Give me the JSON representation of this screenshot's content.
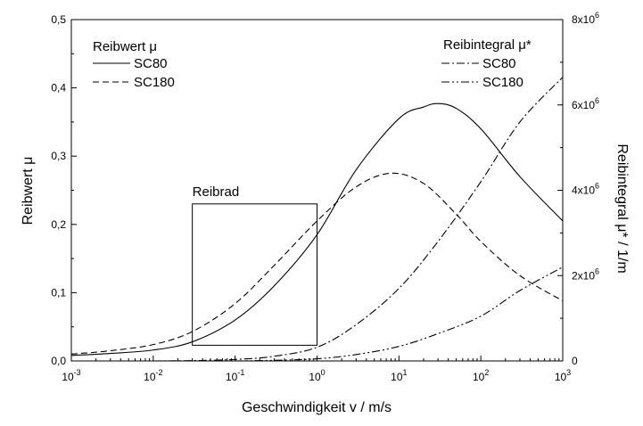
{
  "chart_data": {
    "type": "line",
    "xlabel": "Geschwindigkeit v / m/s",
    "ylabel_left": "Reibwert μ",
    "ylabel_right": "Reibintegral μ* / 1/m",
    "x_scale": "log",
    "xlim": [
      0.001,
      1000
    ],
    "ylim_left": [
      0,
      0.5
    ],
    "ylim_right": [
      0,
      8000000
    ],
    "x_ticks": [
      {
        "value": 0.001,
        "base": "10",
        "exp": "-3"
      },
      {
        "value": 0.01,
        "base": "10",
        "exp": "-2"
      },
      {
        "value": 0.1,
        "base": "10",
        "exp": "-1"
      },
      {
        "value": 1,
        "base": "10",
        "exp": "0"
      },
      {
        "value": 10,
        "base": "10",
        "exp": "1"
      },
      {
        "value": 100,
        "base": "10",
        "exp": "2"
      },
      {
        "value": 1000,
        "base": "10",
        "exp": "3"
      }
    ],
    "y_left_ticks": [
      {
        "value": 0,
        "label": "0,0"
      },
      {
        "value": 0.1,
        "label": "0,1"
      },
      {
        "value": 0.2,
        "label": "0,2"
      },
      {
        "value": 0.3,
        "label": "0,3"
      },
      {
        "value": 0.4,
        "label": "0,4"
      },
      {
        "value": 0.5,
        "label": "0,5"
      }
    ],
    "y_right_ticks": [
      {
        "value": 0,
        "label": "0",
        "base": "",
        "exp": ""
      },
      {
        "value": 2000000,
        "label": "2x10",
        "base": "2x10",
        "exp": "6"
      },
      {
        "value": 4000000,
        "label": "4x10",
        "base": "4x10",
        "exp": "6"
      },
      {
        "value": 6000000,
        "label": "6x10",
        "base": "6x10",
        "exp": "6"
      },
      {
        "value": 8000000,
        "label": "8x10",
        "base": "8x10",
        "exp": "6"
      }
    ],
    "legend_left": {
      "title": "Reibwert μ",
      "entries": [
        "SC80",
        "SC180"
      ]
    },
    "legend_right": {
      "title": "Reibintegral μ*",
      "entries": [
        "SC80",
        "SC180"
      ]
    },
    "annotation": {
      "label": "Reibrad",
      "x_range": [
        0.03,
        1
      ],
      "y_range": [
        0.023,
        0.23
      ]
    },
    "series": [
      {
        "name": "SC80",
        "group": "Reibwert μ",
        "axis": "left",
        "style": "solid",
        "x": [
          0.001,
          0.003,
          0.01,
          0.03,
          0.1,
          0.3,
          1,
          3,
          10,
          20,
          30,
          50,
          100,
          300,
          1000
        ],
        "y": [
          0.008,
          0.011,
          0.016,
          0.028,
          0.06,
          0.11,
          0.185,
          0.28,
          0.355,
          0.372,
          0.377,
          0.37,
          0.34,
          0.27,
          0.205
        ]
      },
      {
        "name": "SC180",
        "group": "Reibwert μ",
        "axis": "left",
        "style": "dashed",
        "x": [
          0.001,
          0.003,
          0.01,
          0.03,
          0.1,
          0.3,
          1,
          3,
          8,
          20,
          50,
          100,
          300,
          1000
        ],
        "y": [
          0.01,
          0.015,
          0.024,
          0.043,
          0.084,
          0.14,
          0.205,
          0.255,
          0.275,
          0.26,
          0.215,
          0.175,
          0.125,
          0.088
        ]
      },
      {
        "name": "SC80",
        "group": "Reibintegral μ*",
        "axis": "right",
        "style": "dashdot",
        "x": [
          0.01,
          0.03,
          0.1,
          0.3,
          1,
          3,
          10,
          30,
          100,
          300,
          1000
        ],
        "y": [
          0,
          8000,
          35000,
          110000,
          320000,
          850000,
          1700000,
          2800000,
          4200000,
          5600000,
          6650000
        ]
      },
      {
        "name": "SC180",
        "group": "Reibintegral μ*",
        "axis": "right",
        "style": "dashdotdot",
        "x": [
          0.1,
          0.3,
          1,
          3,
          10,
          30,
          100,
          300,
          1000
        ],
        "y": [
          0,
          15000,
          50000,
          150000,
          340000,
          640000,
          1050000,
          1650000,
          2200000
        ]
      }
    ]
  }
}
